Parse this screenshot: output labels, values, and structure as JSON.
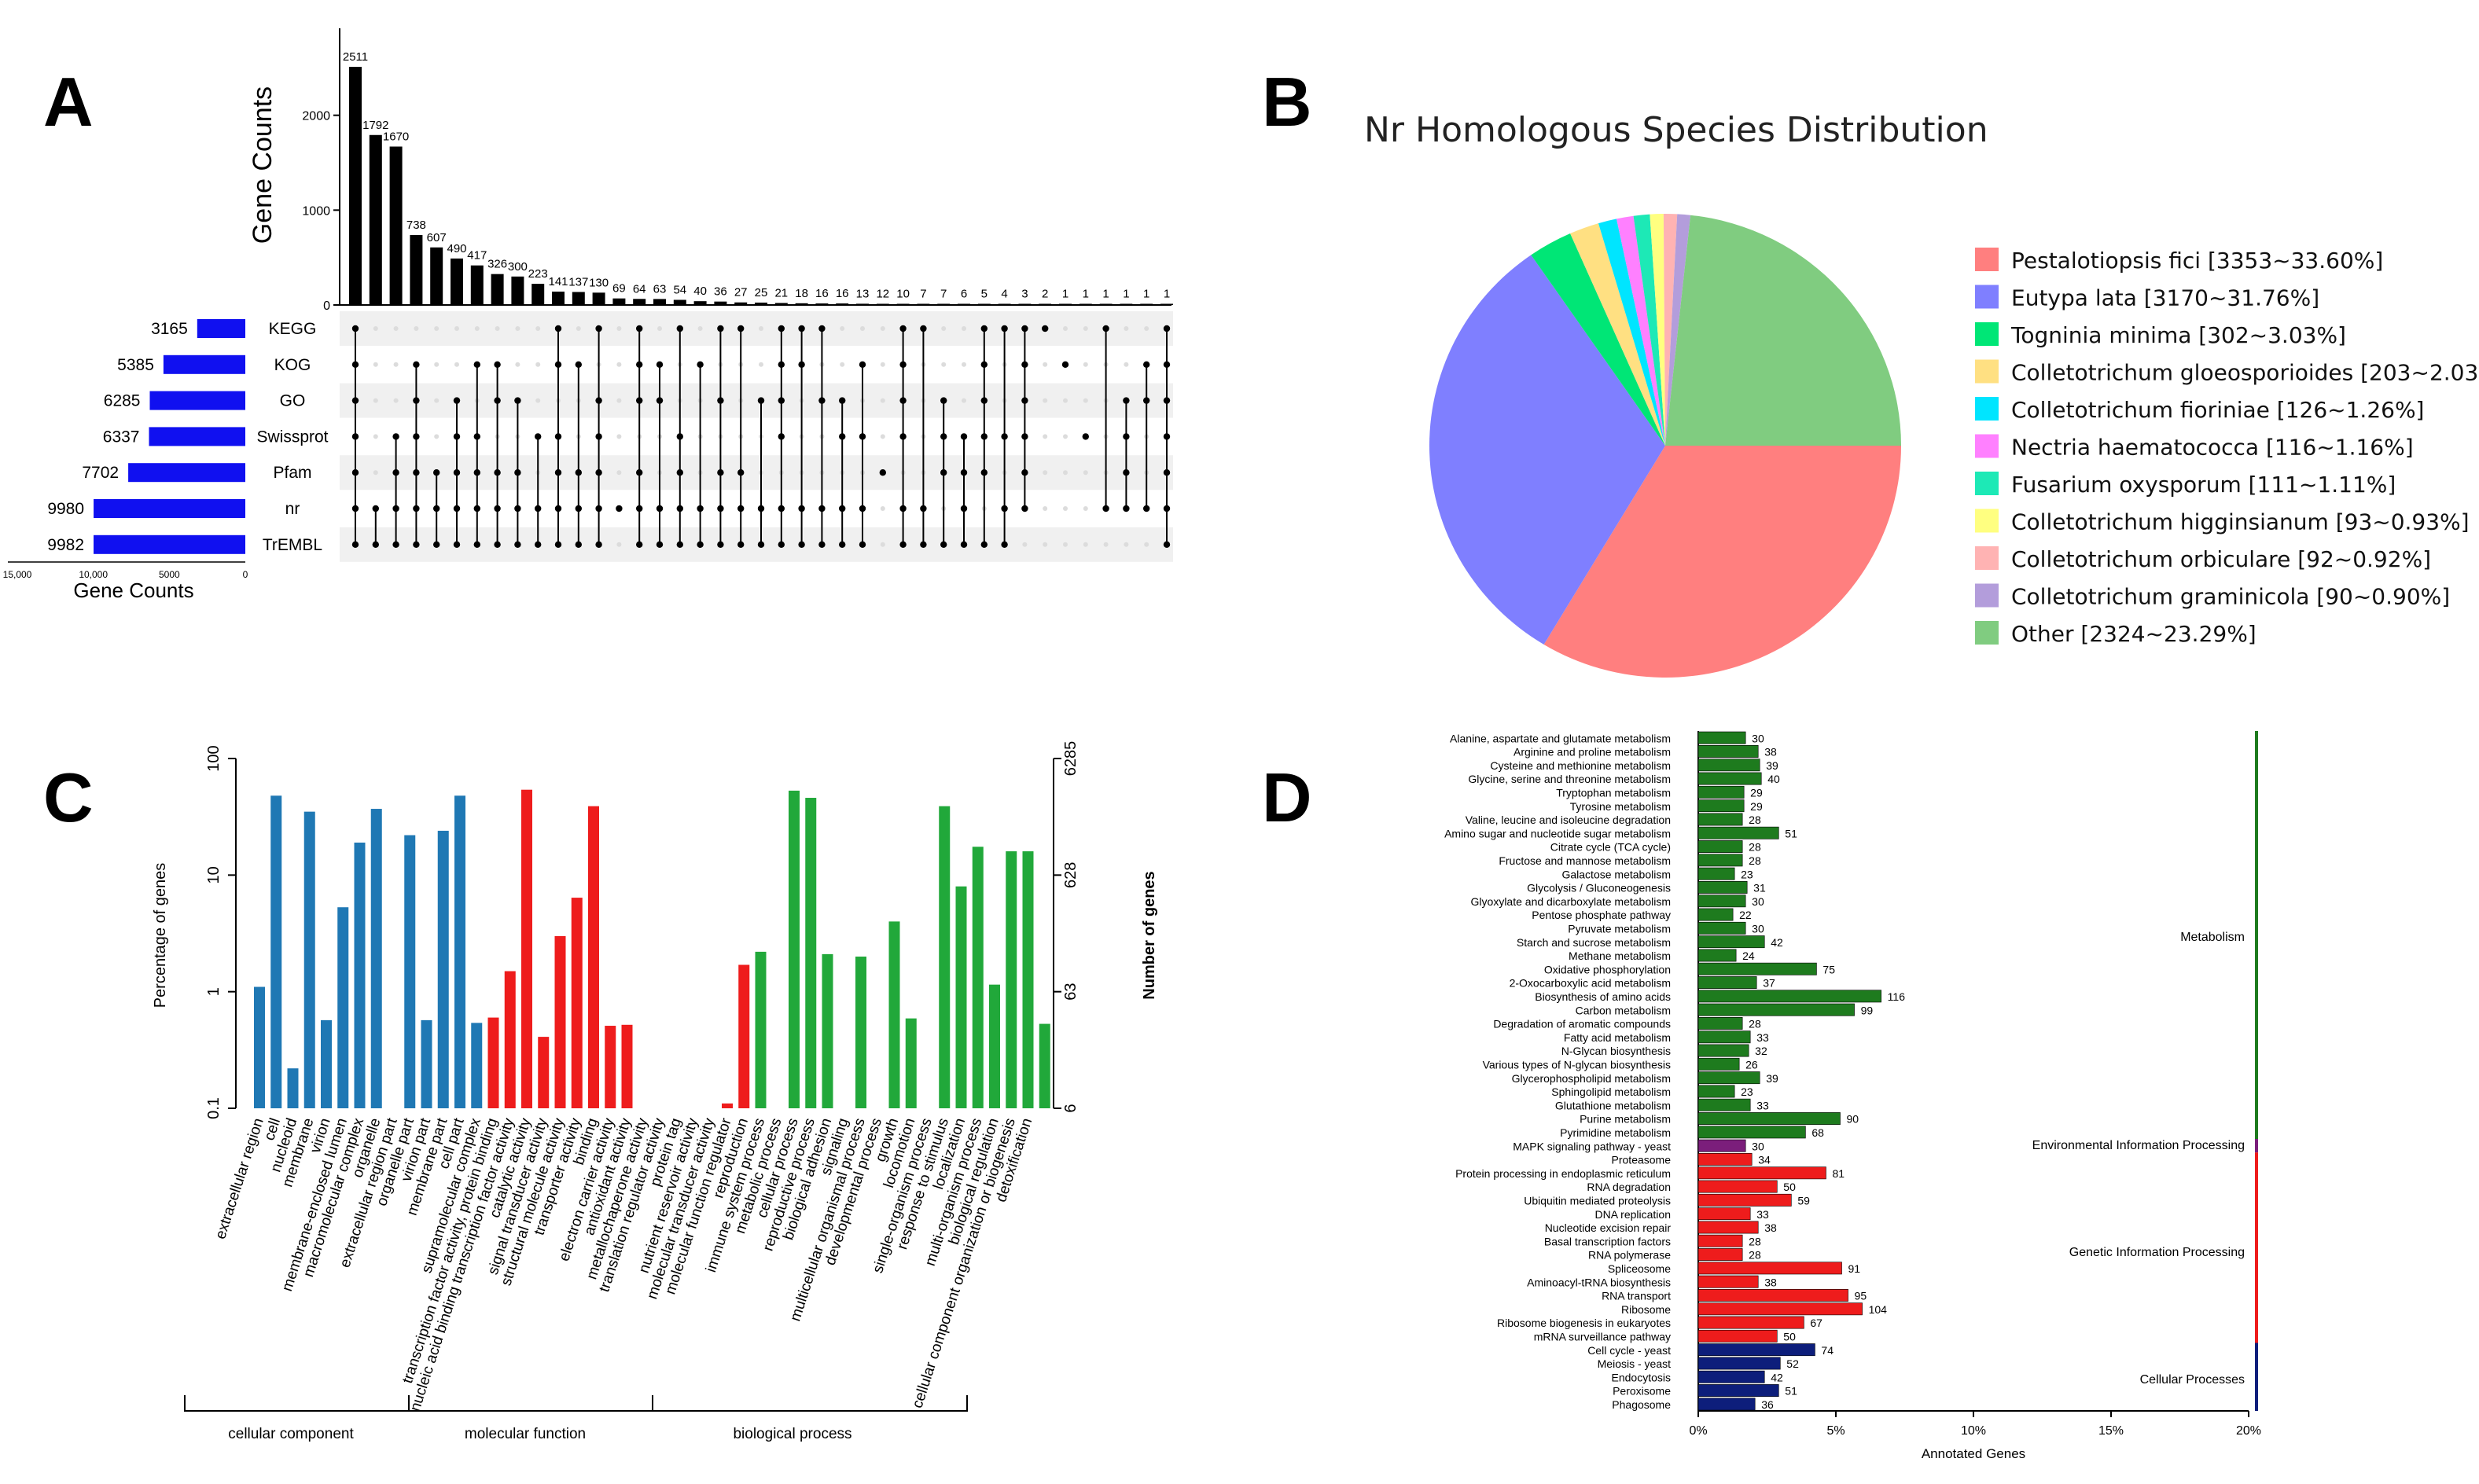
{
  "panels": {
    "a": "A",
    "b": "B",
    "c": "C",
    "d": "D"
  },
  "upset": {
    "ylabel": "Gene Counts",
    "y_ticks": [
      "0",
      "1000",
      "2000"
    ],
    "x_ticks": [
      "15,000",
      "10,000",
      "5000",
      "0"
    ],
    "set_xlabel": "Gene Counts",
    "counts": [
      2511,
      1792,
      1670,
      738,
      607,
      490,
      417,
      326,
      300,
      223,
      141,
      137,
      130,
      69,
      64,
      63,
      54,
      40,
      36,
      27,
      25,
      21,
      18,
      16,
      16,
      13,
      12,
      10,
      7,
      7,
      6,
      5,
      4,
      3,
      2,
      1,
      1,
      1,
      1,
      1,
      1
    ],
    "sets": [
      {
        "name": "KEGG",
        "size": 3165
      },
      {
        "name": "KOG",
        "size": 5385
      },
      {
        "name": "GO",
        "size": 6285
      },
      {
        "name": "Swissprot",
        "size": 6337
      },
      {
        "name": "Pfam",
        "size": 7702
      },
      {
        "name": "nr",
        "size": 9980
      },
      {
        "name": "TrEMBL",
        "size": 9982
      }
    ],
    "memberships": [
      [
        0,
        1,
        2,
        3,
        4,
        5,
        6
      ],
      [
        5,
        6
      ],
      [
        3,
        4,
        5,
        6
      ],
      [
        1,
        2,
        3,
        4,
        5,
        6
      ],
      [
        4,
        5,
        6
      ],
      [
        2,
        3,
        4,
        5,
        6
      ],
      [
        1,
        3,
        4,
        5,
        6
      ],
      [
        1,
        2,
        4,
        5,
        6
      ],
      [
        2,
        4,
        5,
        6
      ],
      [
        3,
        5,
        6
      ],
      [
        0,
        1,
        3,
        4,
        5,
        6
      ],
      [
        1,
        4,
        5,
        6
      ],
      [
        0,
        2,
        3,
        4,
        5,
        6
      ],
      [
        5
      ],
      [
        0,
        1,
        2,
        4,
        5,
        6
      ],
      [
        1,
        2,
        5,
        6
      ],
      [
        0,
        3,
        4,
        5,
        6
      ],
      [
        1,
        5,
        6
      ],
      [
        0,
        2,
        4,
        5,
        6
      ],
      [
        0,
        4,
        5,
        6
      ],
      [
        2,
        5,
        6
      ],
      [
        0,
        1,
        2,
        3,
        5,
        6
      ],
      [
        0,
        1,
        5,
        6
      ],
      [
        0,
        2,
        5,
        6
      ],
      [
        2,
        3,
        5,
        6
      ],
      [
        1,
        3,
        5,
        6
      ],
      [
        4
      ],
      [
        0,
        1,
        2,
        3,
        5,
        6
      ],
      [
        0,
        5,
        6
      ],
      [
        2,
        3,
        4,
        6
      ],
      [
        3,
        4,
        5,
        6
      ],
      [
        0,
        1,
        2,
        3,
        4,
        6
      ],
      [
        0,
        3,
        5,
        6
      ],
      [
        0,
        1,
        2,
        3,
        4,
        5
      ],
      [
        0
      ],
      [
        1
      ],
      [
        3
      ],
      [
        0,
        5
      ],
      [
        2,
        3,
        4,
        5
      ],
      [
        1,
        2,
        5
      ],
      [
        0,
        1,
        2,
        3,
        4,
        5,
        6
      ]
    ]
  },
  "pie": {
    "title": "Nr Homologous Species Distribution",
    "slices": [
      {
        "label": "Pestalotiopsis fici [3353~33.60%]",
        "value": 33.6,
        "color": "#FF7F7F"
      },
      {
        "label": "Eutypa lata [3170~31.76%]",
        "value": 31.76,
        "color": "#7F7FFF"
      },
      {
        "label": "Togninia minima [302~3.03%]",
        "value": 3.03,
        "color": "#00E676"
      },
      {
        "label": "Colletotrichum gloeosporioides [203~2.03",
        "value": 2.03,
        "color": "#FFE082"
      },
      {
        "label": "Colletotrichum fioriniae [126~1.26%]",
        "value": 1.26,
        "color": "#00E5FF"
      },
      {
        "label": "Nectria haematococca [116~1.16%]",
        "value": 1.16,
        "color": "#FF80FF"
      },
      {
        "label": "Fusarium oxysporum [111~1.11%]",
        "value": 1.11,
        "color": "#1DE9B6"
      },
      {
        "label": "Colletotrichum higginsianum [93~0.93%]",
        "value": 0.93,
        "color": "#FFFF80"
      },
      {
        "label": "Colletotrichum orbiculare [92~0.92%]",
        "value": 0.92,
        "color": "#FFB3B3"
      },
      {
        "label": "Colletotrichum graminicola [90~0.90%]",
        "value": 0.9,
        "color": "#B39DDB"
      },
      {
        "label": "Other [2324~23.29%]",
        "value": 23.29,
        "color": "#80CC80"
      }
    ]
  },
  "go": {
    "ylabel_left": "Percentage of genes",
    "ylabel_right": "Number of genes",
    "left_ticks": [
      "100",
      "10",
      "1",
      "0.1"
    ],
    "right_ticks": [
      "6285",
      "628",
      "63",
      "6"
    ],
    "groups": [
      {
        "name": "cellular component",
        "color": "#1F78B4"
      },
      {
        "name": "molecular function",
        "color": "#EE1C1C"
      },
      {
        "name": "biological process",
        "color": "#21A83A"
      }
    ],
    "terms": [
      {
        "label": "extracellular region",
        "value": 1.1,
        "group": 0
      },
      {
        "label": "cell",
        "value": 48,
        "group": 0
      },
      {
        "label": "nucleoid",
        "value": 0.22,
        "group": 0
      },
      {
        "label": "membrane",
        "value": 35,
        "group": 0
      },
      {
        "label": "virion",
        "value": 0.57,
        "group": 0
      },
      {
        "label": "membrane-enclosed lumen",
        "value": 5.3,
        "group": 0
      },
      {
        "label": "macromolecular complex",
        "value": 19,
        "group": 0
      },
      {
        "label": "organelle",
        "value": 37,
        "group": 0
      },
      {
        "label": "extracellular region part",
        "value": 0.0,
        "group": 0
      },
      {
        "label": "organelle part",
        "value": 22,
        "group": 0
      },
      {
        "label": "virion part",
        "value": 0.57,
        "group": 0
      },
      {
        "label": "membrane part",
        "value": 24,
        "group": 0
      },
      {
        "label": "cell part",
        "value": 48,
        "group": 0
      },
      {
        "label": "supramolecular complex",
        "value": 0.54,
        "group": 0
      },
      {
        "label": "transcription factor activity, protein binding",
        "value": 0.6,
        "group": 1
      },
      {
        "label": "nucleic acid binding transcription factor activity",
        "value": 1.5,
        "group": 1
      },
      {
        "label": "catalytic activity",
        "value": 54,
        "group": 1
      },
      {
        "label": "signal transducer activity",
        "value": 0.41,
        "group": 1
      },
      {
        "label": "structural molecule activity",
        "value": 3.0,
        "group": 1
      },
      {
        "label": "transporter activity",
        "value": 6.4,
        "group": 1
      },
      {
        "label": "binding",
        "value": 39,
        "group": 1
      },
      {
        "label": "electron carrier activity",
        "value": 0.51,
        "group": 1
      },
      {
        "label": "antioxidant activity",
        "value": 0.52,
        "group": 1
      },
      {
        "label": "metallochaperone activity",
        "value": 0.0,
        "group": 1
      },
      {
        "label": "translation regulator activity",
        "value": 0.0,
        "group": 1
      },
      {
        "label": "protein tag",
        "value": 0.0,
        "group": 1
      },
      {
        "label": "nutrient reservoir activity",
        "value": 0.0,
        "group": 1
      },
      {
        "label": "molecular transducer activity",
        "value": 0.0,
        "group": 1
      },
      {
        "label": "molecular function regulator",
        "value": 0.11,
        "group": 1
      },
      {
        "label": "reproduction",
        "value": 1.7,
        "group": 1
      },
      {
        "label": "immune system process",
        "value": 2.2,
        "group": 2
      },
      {
        "label": "metabolic process",
        "value": 0.0,
        "group": 2
      },
      {
        "label": "cellular process",
        "value": 53,
        "group": 2
      },
      {
        "label": "reproductive process",
        "value": 46,
        "group": 2
      },
      {
        "label": "biological adhesion",
        "value": 2.1,
        "group": 2
      },
      {
        "label": "signaling",
        "value": 0.0,
        "group": 2
      },
      {
        "label": "multicellular organismal process",
        "value": 2.0,
        "group": 2
      },
      {
        "label": "developmental process",
        "value": 0.0,
        "group": 2
      },
      {
        "label": "growth",
        "value": 4.0,
        "group": 2
      },
      {
        "label": "locomotion",
        "value": 0.59,
        "group": 2
      },
      {
        "label": "single-organism process",
        "value": 0.0,
        "group": 2
      },
      {
        "label": "response to stimulus",
        "value": 39,
        "group": 2
      },
      {
        "label": "localization",
        "value": 8.0,
        "group": 2
      },
      {
        "label": "multi-organism process",
        "value": 17.5,
        "group": 2
      },
      {
        "label": "biological regulation",
        "value": 1.15,
        "group": 2
      },
      {
        "label": "cellular component organization or biogenesis",
        "value": 16,
        "group": 2
      },
      {
        "label": "detoxification",
        "value": 16,
        "group": 2
      },
      {
        "label": "",
        "value": 0.53,
        "group": 2
      }
    ]
  },
  "kegg": {
    "xlabel": "Annotated Genes",
    "x_ticks": [
      "0%",
      "5%",
      "10%",
      "15%",
      "20%"
    ],
    "categories": [
      {
        "name": "Metabolism",
        "color": "#1E7B1E"
      },
      {
        "name": "Environmental Information Processing",
        "color": "#7B1E7B"
      },
      {
        "name": "Genetic Information Processing",
        "color": "#EE1C1C"
      },
      {
        "name": "Cellular Processes",
        "color": "#0D1E7B"
      }
    ],
    "pathways": [
      {
        "label": "Alanine, aspartate and glutamate metabolism",
        "genes": 30,
        "cat": 0
      },
      {
        "label": "Arginine and proline metabolism",
        "genes": 38,
        "cat": 0
      },
      {
        "label": "Cysteine and methionine metabolism",
        "genes": 39,
        "cat": 0
      },
      {
        "label": "Glycine, serine and threonine metabolism",
        "genes": 40,
        "cat": 0
      },
      {
        "label": "Tryptophan metabolism",
        "genes": 29,
        "cat": 0
      },
      {
        "label": "Tyrosine metabolism",
        "genes": 29,
        "cat": 0
      },
      {
        "label": "Valine, leucine and isoleucine degradation",
        "genes": 28,
        "cat": 0
      },
      {
        "label": "Amino sugar and nucleotide sugar metabolism",
        "genes": 51,
        "cat": 0
      },
      {
        "label": "Citrate cycle (TCA cycle)",
        "genes": 28,
        "cat": 0
      },
      {
        "label": "Fructose and mannose metabolism",
        "genes": 28,
        "cat": 0
      },
      {
        "label": "Galactose metabolism",
        "genes": 23,
        "cat": 0
      },
      {
        "label": "Glycolysis / Gluconeogenesis",
        "genes": 31,
        "cat": 0
      },
      {
        "label": "Glyoxylate and dicarboxylate metabolism",
        "genes": 30,
        "cat": 0
      },
      {
        "label": "Pentose phosphate pathway",
        "genes": 22,
        "cat": 0
      },
      {
        "label": "Pyruvate metabolism",
        "genes": 30,
        "cat": 0
      },
      {
        "label": "Starch and sucrose metabolism",
        "genes": 42,
        "cat": 0
      },
      {
        "label": "Methane metabolism",
        "genes": 24,
        "cat": 0
      },
      {
        "label": "Oxidative phosphorylation",
        "genes": 75,
        "cat": 0
      },
      {
        "label": "2-Oxocarboxylic acid metabolism",
        "genes": 37,
        "cat": 0
      },
      {
        "label": "Biosynthesis of amino acids",
        "genes": 116,
        "cat": 0
      },
      {
        "label": "Carbon metabolism",
        "genes": 99,
        "cat": 0
      },
      {
        "label": "Degradation of aromatic compounds",
        "genes": 28,
        "cat": 0
      },
      {
        "label": "Fatty acid metabolism",
        "genes": 33,
        "cat": 0
      },
      {
        "label": "N-Glycan biosynthesis",
        "genes": 32,
        "cat": 0
      },
      {
        "label": "Various types of N-glycan biosynthesis",
        "genes": 26,
        "cat": 0
      },
      {
        "label": "Glycerophospholipid metabolism",
        "genes": 39,
        "cat": 0
      },
      {
        "label": "Sphingolipid metabolism",
        "genes": 23,
        "cat": 0
      },
      {
        "label": "Glutathione metabolism",
        "genes": 33,
        "cat": 0
      },
      {
        "label": "Purine metabolism",
        "genes": 90,
        "cat": 0
      },
      {
        "label": "Pyrimidine metabolism",
        "genes": 68,
        "cat": 0
      },
      {
        "label": "MAPK signaling pathway - yeast",
        "genes": 30,
        "cat": 1
      },
      {
        "label": "Proteasome",
        "genes": 34,
        "cat": 2
      },
      {
        "label": "Protein processing in endoplasmic reticulum",
        "genes": 81,
        "cat": 2
      },
      {
        "label": "RNA degradation",
        "genes": 50,
        "cat": 2
      },
      {
        "label": "Ubiquitin mediated proteolysis",
        "genes": 59,
        "cat": 2
      },
      {
        "label": "DNA replication",
        "genes": 33,
        "cat": 2
      },
      {
        "label": "Nucleotide excision repair",
        "genes": 38,
        "cat": 2
      },
      {
        "label": "Basal transcription factors",
        "genes": 28,
        "cat": 2
      },
      {
        "label": "RNA polymerase",
        "genes": 28,
        "cat": 2
      },
      {
        "label": "Spliceosome",
        "genes": 91,
        "cat": 2
      },
      {
        "label": "Aminoacyl-tRNA biosynthesis",
        "genes": 38,
        "cat": 2
      },
      {
        "label": "RNA transport",
        "genes": 95,
        "cat": 2
      },
      {
        "label": "Ribosome",
        "genes": 104,
        "cat": 2
      },
      {
        "label": "Ribosome biogenesis in eukaryotes",
        "genes": 67,
        "cat": 2
      },
      {
        "label": "mRNA surveillance pathway",
        "genes": 50,
        "cat": 2
      },
      {
        "label": "Cell cycle - yeast",
        "genes": 74,
        "cat": 3
      },
      {
        "label": "Meiosis - yeast",
        "genes": 52,
        "cat": 3
      },
      {
        "label": "Endocytosis",
        "genes": 42,
        "cat": 3
      },
      {
        "label": "Peroxisome",
        "genes": 51,
        "cat": 3
      },
      {
        "label": "Phagosome",
        "genes": 36,
        "cat": 3
      }
    ]
  },
  "chart_data": [
    {
      "type": "bar",
      "title": "A",
      "ylabel": "Gene Counts",
      "values": [
        2511,
        1792,
        1670,
        738,
        607,
        490,
        417,
        326,
        300,
        223,
        141,
        137,
        130,
        69,
        64,
        63,
        54,
        40,
        36,
        27,
        25,
        21,
        18,
        16,
        16,
        13,
        12,
        10,
        7,
        7,
        6,
        5,
        4,
        3,
        2,
        1,
        1,
        1,
        1,
        1,
        1
      ],
      "sets": [
        "KEGG",
        "KOG",
        "GO",
        "Swissprot",
        "Pfam",
        "nr",
        "TrEMBL"
      ],
      "set_sizes": [
        3165,
        5385,
        6285,
        6337,
        7702,
        9980,
        9982
      ]
    },
    {
      "type": "pie",
      "title": "Nr Homologous Species Distribution",
      "categories": [
        "Pestalotiopsis fici",
        "Eutypa lata",
        "Togninia minima",
        "Colletotrichum gloeosporioides",
        "Colletotrichum fioriniae",
        "Nectria haematococca",
        "Fusarium oxysporum",
        "Colletotrichum higginsianum",
        "Colletotrichum orbiculare",
        "Colletotrichum graminicola",
        "Other"
      ],
      "values": [
        33.6,
        31.76,
        3.03,
        2.03,
        1.26,
        1.16,
        1.11,
        0.93,
        0.92,
        0.9,
        23.29
      ]
    },
    {
      "type": "bar",
      "title": "C",
      "ylabel": "Percentage of genes",
      "y2label": "Number of genes",
      "yscale": "log",
      "ylim": [
        0.1,
        100
      ]
    },
    {
      "type": "bar",
      "title": "D",
      "orientation": "horizontal",
      "xlabel": "Annotated Genes",
      "xlim": [
        0,
        20
      ]
    }
  ]
}
